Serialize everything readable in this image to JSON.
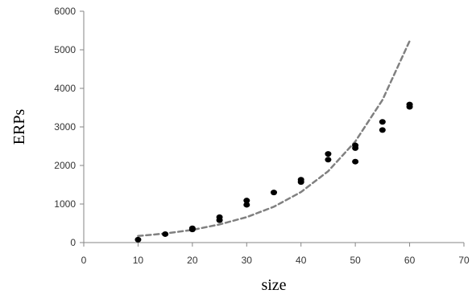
{
  "chart_data": {
    "type": "scatter",
    "xlabel": "size",
    "ylabel": "ERPs",
    "xlim": [
      0,
      70
    ],
    "ylim": [
      0,
      6000
    ],
    "xticks": [
      0,
      10,
      20,
      30,
      40,
      50,
      60,
      70
    ],
    "yticks": [
      0,
      1000,
      2000,
      3000,
      4000,
      5000,
      6000
    ],
    "grid": false,
    "legend": "none",
    "series": [
      {
        "kind": "points",
        "color": "#000000",
        "points": [
          [
            10,
            75
          ],
          [
            15,
            220
          ],
          [
            20,
            340
          ],
          [
            20,
            370
          ],
          [
            25,
            580
          ],
          [
            25,
            660
          ],
          [
            30,
            980
          ],
          [
            30,
            1090
          ],
          [
            35,
            1300
          ],
          [
            40,
            1570
          ],
          [
            40,
            1630
          ],
          [
            45,
            2150
          ],
          [
            45,
            2300
          ],
          [
            50,
            2100
          ],
          [
            50,
            2450
          ],
          [
            50,
            2520
          ],
          [
            55,
            2920
          ],
          [
            55,
            3130
          ],
          [
            60,
            3520
          ],
          [
            60,
            3580
          ]
        ]
      },
      {
        "kind": "curve",
        "style": "dashed",
        "color": "#808080",
        "points": [
          [
            10,
            170
          ],
          [
            15,
            235
          ],
          [
            20,
            330
          ],
          [
            25,
            470
          ],
          [
            30,
            660
          ],
          [
            35,
            930
          ],
          [
            40,
            1310
          ],
          [
            45,
            1850
          ],
          [
            50,
            2620
          ],
          [
            55,
            3700
          ],
          [
            60,
            5230
          ]
        ]
      }
    ]
  }
}
